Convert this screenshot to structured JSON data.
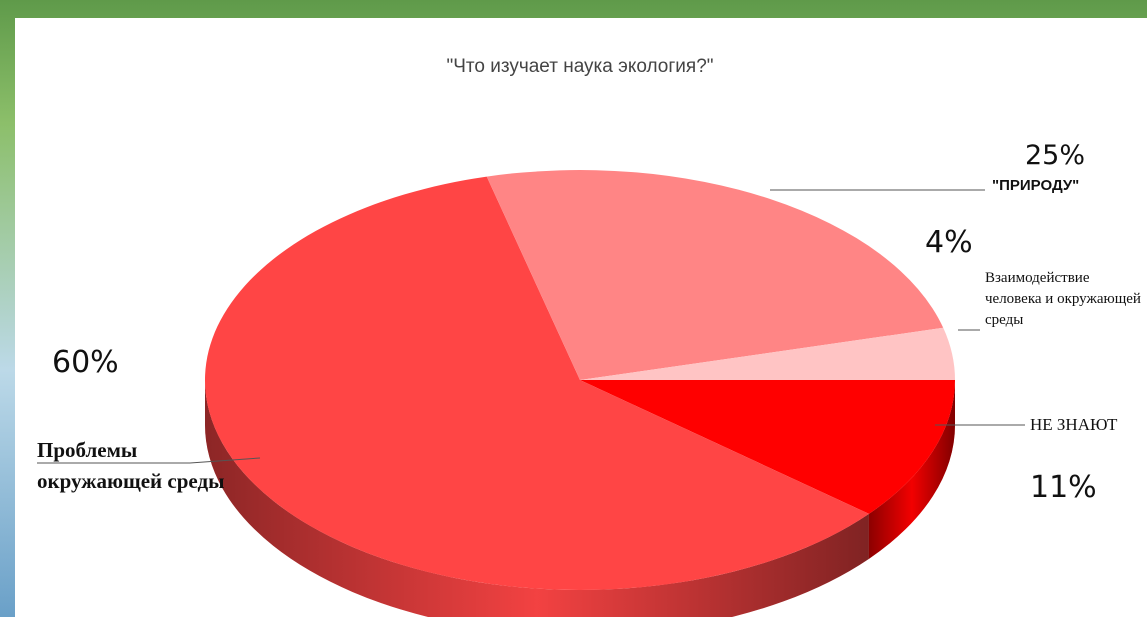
{
  "chart_data": {
    "type": "pie",
    "title": "\"Что изучает наука экология?\"",
    "categories": [
      "НЕ ЗНАЮТ",
      "Проблемы окружающей среды",
      "\"ПРИРОДУ\"",
      "Взаимодействие человека и окружающей среды"
    ],
    "values": [
      11,
      60,
      25,
      4
    ],
    "value_labels": [
      "11%",
      "60%",
      "25%",
      "4%"
    ],
    "colors": [
      "#ff0000",
      "#ff4545",
      "#ff8585",
      "#ffc4c4"
    ]
  }
}
